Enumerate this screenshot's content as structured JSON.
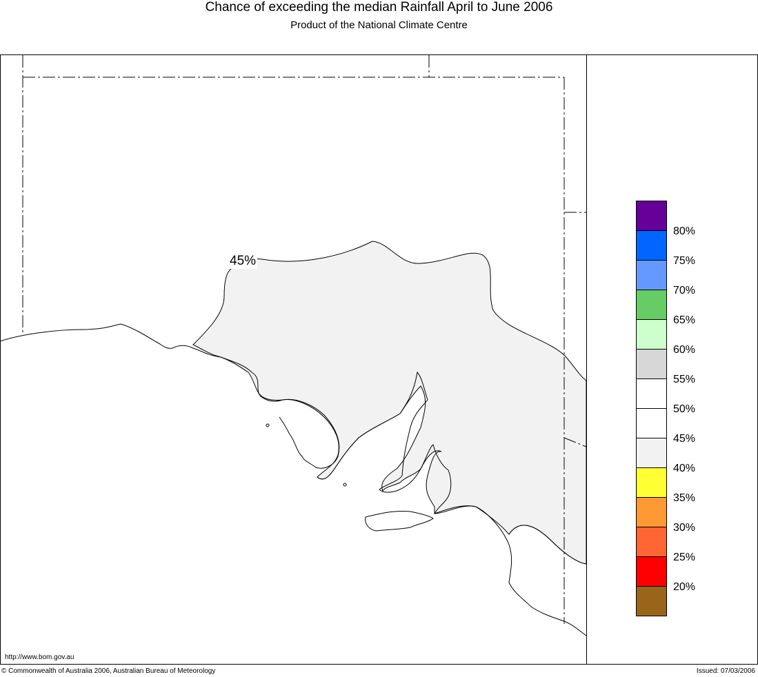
{
  "header": {
    "title": "Chance of exceeding the median Rainfall April to June 2006",
    "subtitle": "Product of the National Climate Centre"
  },
  "map": {
    "contour_label": "45%",
    "region_fill": "#f2f2f2",
    "background": "#ffffff"
  },
  "legend": {
    "colors": [
      "#660099",
      "#0066ff",
      "#6699ff",
      "#66cc66",
      "#ccffcc",
      "#d7d7d7",
      "#ffffff",
      "#ffffff",
      "#f2f2f2",
      "#ffff33",
      "#ff9933",
      "#ff6633",
      "#ff0000",
      "#996619"
    ],
    "labels": [
      "80%",
      "75%",
      "70%",
      "65%",
      "60%",
      "55%",
      "50%",
      "45%",
      "40%",
      "35%",
      "30%",
      "25%",
      "20%"
    ]
  },
  "footer": {
    "url": "http://www.bom.gov.au",
    "copyright": "© Commonwealth of Australia 2006, Australian Bureau of Meteorology",
    "issued": "Issued: 07/03/2006"
  }
}
